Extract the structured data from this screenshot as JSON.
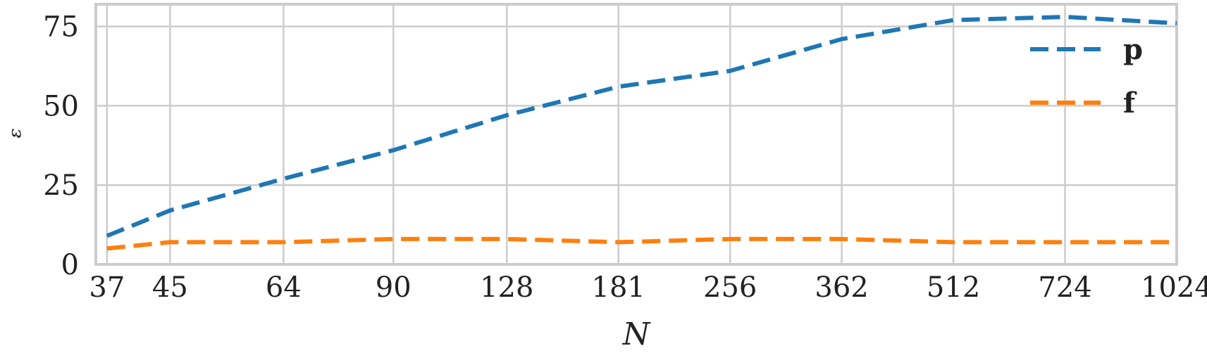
{
  "chart_data": {
    "type": "line",
    "xlabel": "N",
    "ylabel": "ᵋ",
    "x_scale": "log2",
    "x": [
      37,
      45,
      64,
      90,
      128,
      181,
      256,
      362,
      512,
      724,
      1024
    ],
    "x_tick_labels": [
      "37",
      "45",
      "64",
      "90",
      "128",
      "181",
      "256",
      "362",
      "512",
      "724",
      "1024"
    ],
    "y_ticks": [
      0,
      25,
      50,
      75
    ],
    "y_tick_labels": [
      "0",
      "25",
      "50",
      "75"
    ],
    "ylim": [
      0,
      82
    ],
    "grid": true,
    "legend_position": "top-right",
    "series": [
      {
        "name": "p",
        "color": "#1f77b4",
        "values": [
          9,
          17,
          27,
          36,
          47,
          56,
          61,
          71,
          77,
          78,
          76
        ]
      },
      {
        "name": "f",
        "color": "#ff7f0e",
        "values": [
          5,
          7,
          7,
          8,
          8,
          7,
          8,
          8,
          7,
          7,
          7
        ]
      }
    ]
  }
}
